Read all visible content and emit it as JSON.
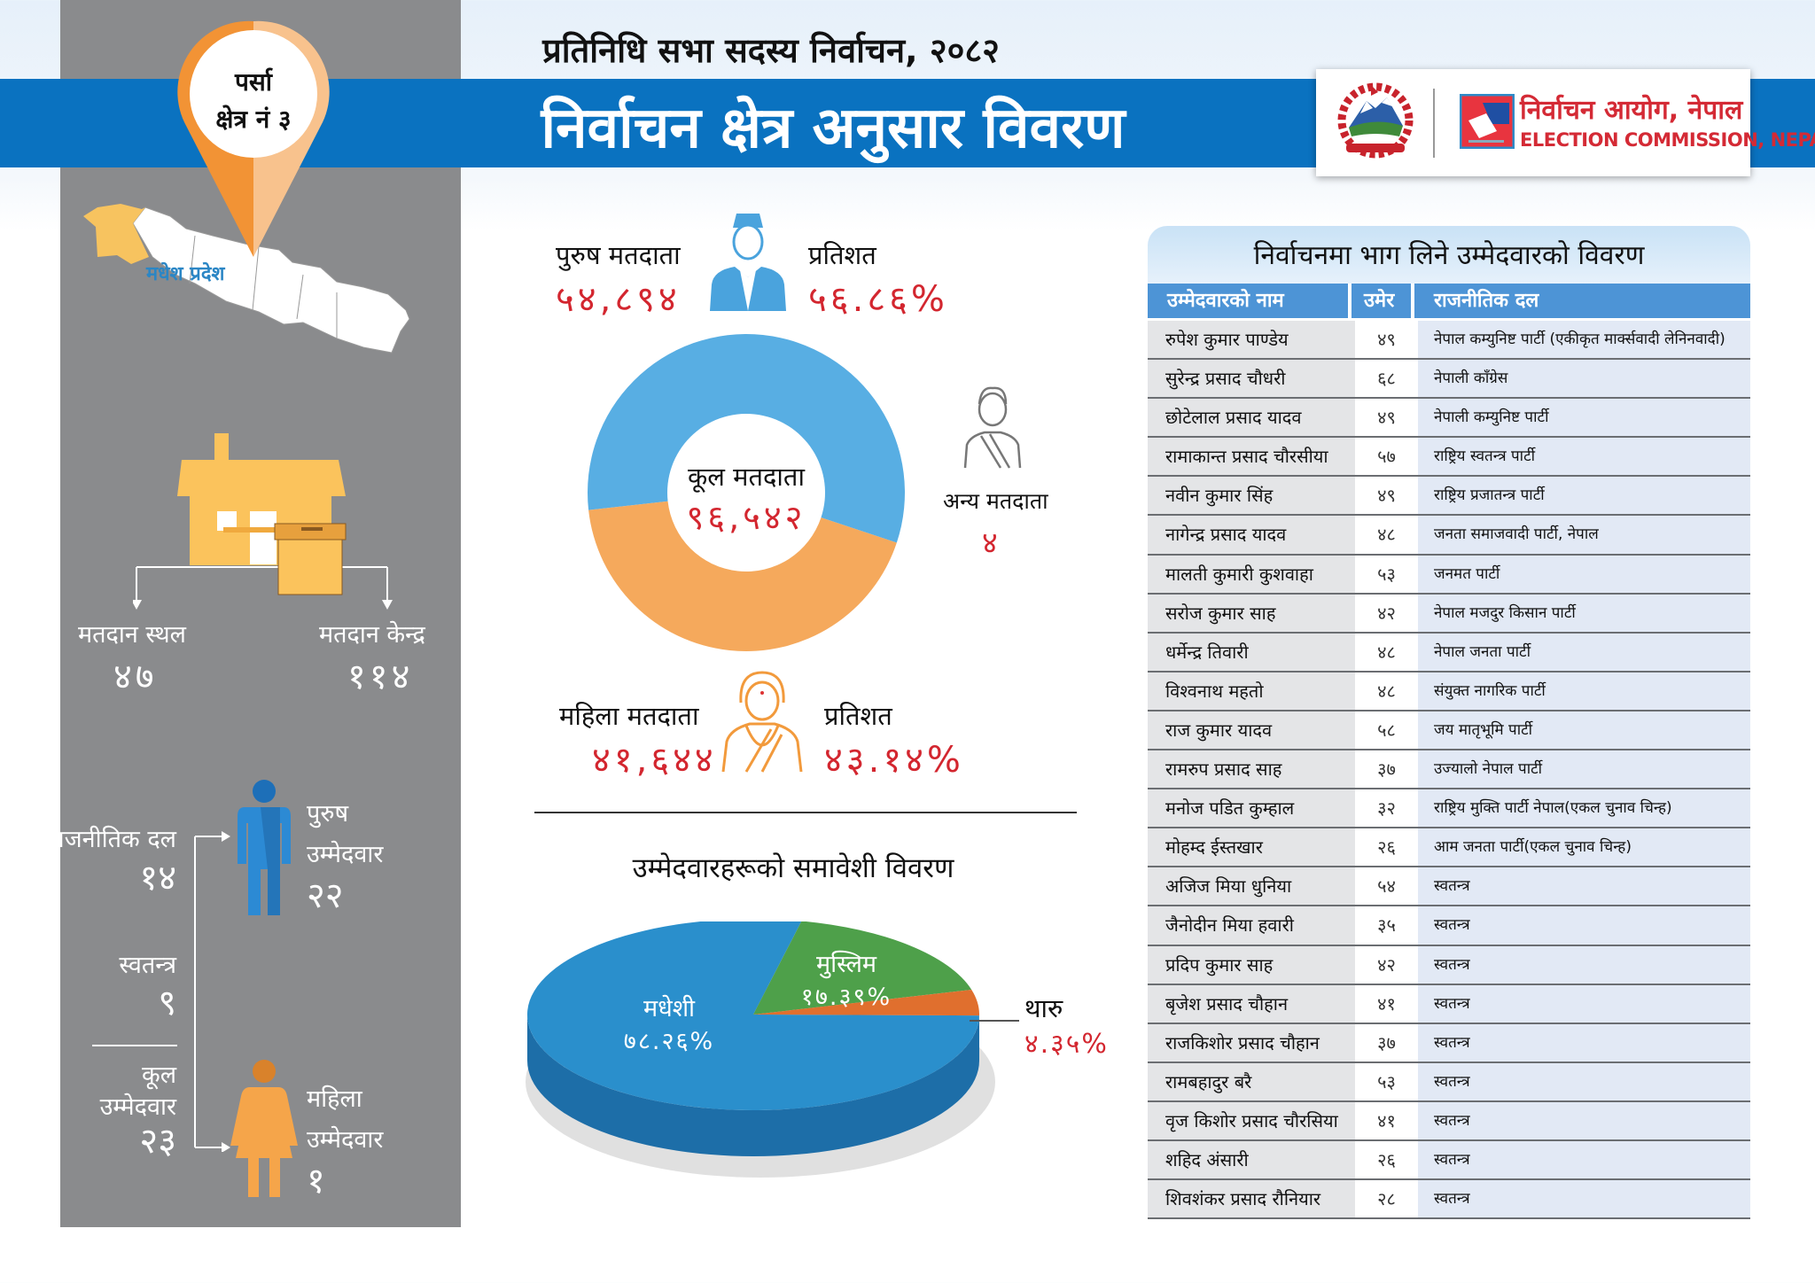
{
  "header": {
    "subtitle": "प्रतिनिधि सभा सदस्य निर्वाचन, २०८२",
    "title": "निर्वाचन क्षेत्र अनुसार विवरण",
    "logo": {
      "name_np": "निर्वाचन आयोग, नेपाल",
      "name_en": "ELECTION COMMISSION, NEPAL"
    }
  },
  "constituency": {
    "district": "पर्सा",
    "area": "क्षेत्र नं ३",
    "province": "मधेश प्रदेश"
  },
  "polling": {
    "station_label": "मतदान स्थल",
    "station_value": "४७",
    "centre_label": "मतदान केन्द्र",
    "centre_value": "११४"
  },
  "candidates_summary": {
    "party_label": "राजनीतिक दल",
    "party_value": "१४",
    "independent_label": "स्वतन्त्र",
    "independent_value": "९",
    "total_label_1": "कूल",
    "total_label_2": "उम्मेदवार",
    "total_value": "२३",
    "male_label_1": "पुरुष",
    "male_label_2": "उम्मेदवार",
    "male_value": "२२",
    "female_label_1": "महिला",
    "female_label_2": "उम्मेदवार",
    "female_value": "१"
  },
  "voters": {
    "male_label": "पुरुष मतदाता",
    "male_value": "५४,८९४",
    "male_pct_label": "प्रतिशत",
    "male_pct": "५६.८६%",
    "female_label": "महिला मतदाता",
    "female_value": "४१,६४४",
    "female_pct_label": "प्रतिशत",
    "female_pct": "४३.१४%",
    "total_label": "कूल मतदाता",
    "total_value": "९६,५४२",
    "other_label": "अन्य मतदाता",
    "other_value": "४"
  },
  "inclusion": {
    "title": "उम्मेदवारहरूको समावेशी विवरण",
    "slices": [
      {
        "label": "मधेशी",
        "pct_text": "७८.२६%"
      },
      {
        "label": "मुस्लिम",
        "pct_text": "१७.३९%"
      },
      {
        "label": "थारु",
        "pct_text": "४.३५%"
      }
    ]
  },
  "chart_data": [
    {
      "type": "pie",
      "variant": "donut",
      "title": "",
      "categories": [
        "पुरुष मतदाता",
        "महिला मतदाता",
        "अन्य मतदाता"
      ],
      "values": [
        54894,
        41644,
        4
      ],
      "colors": [
        "#58aee3",
        "#f5a95c",
        "#999999"
      ]
    },
    {
      "type": "pie",
      "variant": "3d",
      "title": "उम्मेदवारहरूको समावेशी विवरण",
      "categories": [
        "मधेशी",
        "मुस्लिम",
        "थारु"
      ],
      "values": [
        78.26,
        17.39,
        4.35
      ],
      "colors": [
        "#2a8fcc",
        "#4ea04a",
        "#e06f2e"
      ]
    }
  ],
  "table": {
    "title": "निर्वाचनमा भाग लिने उम्मेदवारको विवरण",
    "columns": [
      "उम्मेदवारको नाम",
      "उमेर",
      "राजनीतिक दल"
    ],
    "rows": [
      [
        "रुपेश कुमार पाण्डेय",
        "४९",
        "नेपाल कम्युनिष्ट पार्टी (एकीकृत मार्क्सवादी लेनिनवादी)"
      ],
      [
        "सुरेन्द्र प्रसाद चौधरी",
        "६८",
        "नेपाली काँग्रेस"
      ],
      [
        "छोटेलाल प्रसाद यादव",
        "४९",
        "नेपाली कम्युनिष्ट पार्टी"
      ],
      [
        "रामाकान्त प्रसाद चौरसीया",
        "५७",
        "राष्ट्रिय स्वतन्त्र पार्टी"
      ],
      [
        "नवीन कुमार सिंह",
        "४९",
        "राष्ट्रिय प्रजातन्त्र पार्टी"
      ],
      [
        "नागेन्द्र प्रसाद यादव",
        "४८",
        "जनता समाजवादी पार्टी, नेपाल"
      ],
      [
        "मालती कुमारी कुशवाहा",
        "५३",
        "जनमत पार्टी"
      ],
      [
        "सरोज कुमार साह",
        "४२",
        "नेपाल मजदुर किसान पार्टी"
      ],
      [
        "धर्मेन्द्र तिवारी",
        "४८",
        "नेपाल जनता पार्टी"
      ],
      [
        "विश्वनाथ महतो",
        "४८",
        "संयुक्त नागरिक पार्टी"
      ],
      [
        "राज कुमार यादव",
        "५८",
        "जय मातृभूमि पार्टी"
      ],
      [
        "रामरुप प्रसाद साह",
        "३७",
        "उज्यालो नेपाल पार्टी"
      ],
      [
        "मनोज पडित कुम्हाल",
        "३२",
        "राष्ट्रिय मुक्ति पार्टी नेपाल(एकल चुनाव चिन्ह)"
      ],
      [
        "मोहम्द ईस्तखार",
        "२६",
        "आम जनता पार्टी(एकल चुनाव चिन्ह)"
      ],
      [
        "अजिज मिया धुनिया",
        "५४",
        "स्वतन्त्र"
      ],
      [
        "जैनोदीन मिया हवारी",
        "३५",
        "स्वतन्त्र"
      ],
      [
        "प्रदिप कुमार साह",
        "४२",
        "स्वतन्त्र"
      ],
      [
        "बृजेश प्रसाद चौहान",
        "४१",
        "स्वतन्त्र"
      ],
      [
        "राजकिशोर प्रसाद चौहान",
        "३७",
        "स्वतन्त्र"
      ],
      [
        "रामबहादुर बरै",
        "५३",
        "स्वतन्त्र"
      ],
      [
        "वृज किशोर प्रसाद चौरसिया",
        "४१",
        "स्वतन्त्र"
      ],
      [
        "शहिद अंसारी",
        "२६",
        "स्वतन्त्र"
      ],
      [
        "शिवशंकर प्रसाद रौनियार",
        "२८",
        "स्वतन्त्र"
      ]
    ]
  },
  "colors": {
    "brand_blue": "#0a72c0",
    "accent_red": "#d3262f",
    "panel_gray": "#8a8b8d",
    "orange": "#f5a95c"
  },
  "icons": [
    "location-pin-icon",
    "nepal-map-icon",
    "polling-house-icon",
    "ballot-box-icon",
    "male-figure-icon",
    "female-figure-icon",
    "man-voter-icon",
    "woman-voter-icon",
    "other-voter-icon",
    "nepal-emblem-icon",
    "election-commission-logo-icon"
  ]
}
